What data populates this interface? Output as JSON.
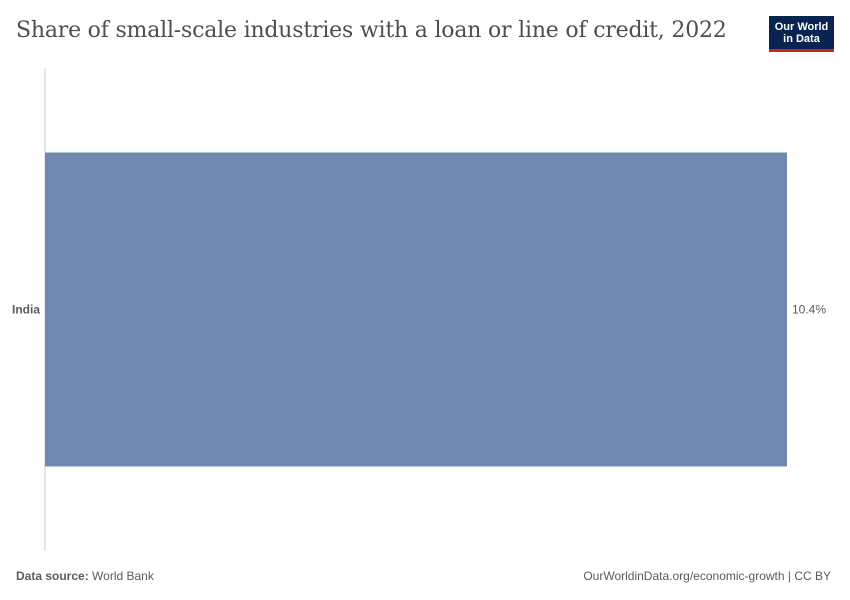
{
  "header": {
    "title": "Share of small-scale industries with a loan or line of credit, 2022",
    "logo_line1": "Our World",
    "logo_line2": "in Data"
  },
  "chart_data": {
    "type": "bar",
    "orientation": "horizontal",
    "categories": [
      "India"
    ],
    "values": [
      10.4
    ],
    "value_labels": [
      "10.4%"
    ],
    "unit": "%",
    "title": "Share of small-scale industries with a loan or line of credit, 2022",
    "xlabel": "",
    "ylabel": "",
    "xlim": [
      0,
      10.4
    ],
    "grid": false,
    "legend": "none",
    "bar_color": "#6f88b0"
  },
  "footer": {
    "source_label": "Data source:",
    "source_value": "World Bank",
    "url_license": "OurWorldinData.org/economic-growth | CC BY"
  },
  "colors": {
    "axis": "#cccccc",
    "logo_bg": "#0a2451",
    "logo_accent": "#ce261e"
  }
}
